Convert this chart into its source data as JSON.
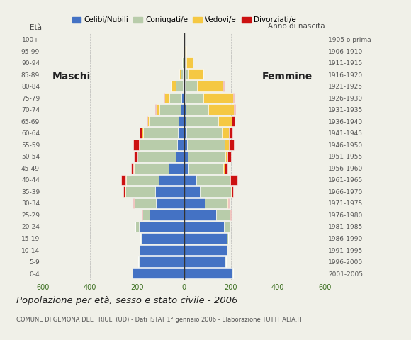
{
  "age_groups": [
    "0-4",
    "5-9",
    "10-14",
    "15-19",
    "20-24",
    "25-29",
    "30-34",
    "35-39",
    "40-44",
    "45-49",
    "50-54",
    "55-59",
    "60-64",
    "65-69",
    "70-74",
    "75-79",
    "80-84",
    "85-89",
    "90-94",
    "95-99",
    "100+"
  ],
  "birth_years": [
    "2001-2005",
    "1996-2000",
    "1991-1995",
    "1986-1990",
    "1981-1985",
    "1976-1980",
    "1971-1975",
    "1966-1970",
    "1961-1965",
    "1956-1960",
    "1951-1955",
    "1946-1950",
    "1941-1945",
    "1936-1940",
    "1931-1935",
    "1926-1930",
    "1921-1925",
    "1916-1920",
    "1911-1915",
    "1906-1910",
    "1905 o prima"
  ],
  "males_celibi": [
    218,
    193,
    188,
    182,
    192,
    148,
    118,
    122,
    108,
    65,
    35,
    28,
    25,
    22,
    15,
    10,
    6,
    4,
    2,
    0,
    0
  ],
  "males_coniugati": [
    2,
    2,
    2,
    5,
    14,
    28,
    92,
    128,
    138,
    148,
    162,
    162,
    150,
    128,
    88,
    52,
    28,
    10,
    5,
    2,
    0
  ],
  "males_vedovi": [
    0,
    0,
    0,
    0,
    0,
    1,
    2,
    2,
    2,
    2,
    2,
    3,
    5,
    5,
    16,
    22,
    18,
    5,
    2,
    0,
    0
  ],
  "males_divorziati": [
    0,
    0,
    0,
    0,
    1,
    2,
    4,
    7,
    18,
    11,
    14,
    22,
    8,
    4,
    3,
    2,
    0,
    0,
    0,
    0,
    0
  ],
  "females_celibi": [
    208,
    178,
    182,
    182,
    172,
    138,
    88,
    68,
    52,
    20,
    16,
    12,
    10,
    8,
    6,
    4,
    4,
    4,
    4,
    1,
    0
  ],
  "females_coniugati": [
    2,
    2,
    2,
    7,
    22,
    58,
    98,
    132,
    142,
    148,
    162,
    162,
    150,
    138,
    98,
    78,
    52,
    16,
    7,
    2,
    0
  ],
  "females_vedovi": [
    0,
    0,
    0,
    0,
    0,
    2,
    2,
    4,
    4,
    6,
    8,
    18,
    32,
    58,
    108,
    128,
    112,
    62,
    28,
    8,
    0
  ],
  "females_divorziati": [
    0,
    0,
    0,
    0,
    1,
    2,
    4,
    7,
    30,
    11,
    14,
    20,
    14,
    12,
    8,
    4,
    2,
    0,
    0,
    0,
    0
  ],
  "color_celibi": "#4472c4",
  "color_coniugati": "#b8ccaa",
  "color_vedovi": "#f5c842",
  "color_divorziati": "#cc1111",
  "legend_labels": [
    "Celibi/Nubili",
    "Coniugati/e",
    "Vedovi/e",
    "Divorziati/e"
  ],
  "title": "Popolazione per età, sesso e stato civile - 2006",
  "subtitle": "COMUNE DI GEMONA DEL FRIULI (UD) - Dati ISTAT 1° gennaio 2006 - Elaborazione TUTTITALIA.IT",
  "label_maschi": "Maschi",
  "label_femmine": "Femmine",
  "label_eta": "Età",
  "label_anno": "Anno di nascita",
  "xlim": 600,
  "bg_color": "#f0f0e8"
}
